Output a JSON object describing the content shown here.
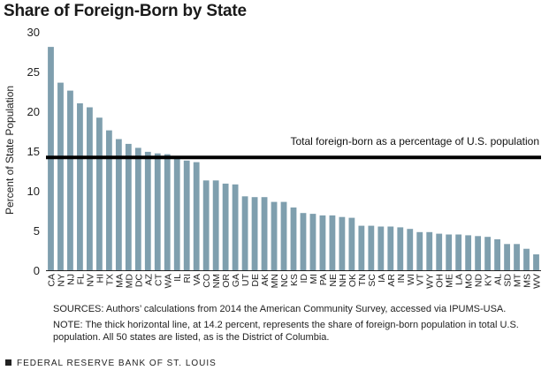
{
  "chart_data": {
    "type": "bar",
    "title": "Share of Foreign-Born by State",
    "xlabel": "",
    "ylabel": "Percent of State Population",
    "ylim": [
      0,
      30
    ],
    "yticks": [
      0,
      5,
      10,
      15,
      20,
      25,
      30
    ],
    "bar_color": "#7f9fae",
    "grid": false,
    "categories": [
      "CA",
      "NY",
      "NJ",
      "FL",
      "NV",
      "HI",
      "TX",
      "MA",
      "MD",
      "DC",
      "AZ",
      "CT",
      "WA",
      "IL",
      "RI",
      "VA",
      "CO",
      "NM",
      "OR",
      "GA",
      "UT",
      "DE",
      "AK",
      "MN",
      "NC",
      "KS",
      "ID",
      "MI",
      "PA",
      "NE",
      "NH",
      "OK",
      "TN",
      "SC",
      "IA",
      "AR",
      "IN",
      "WI",
      "VT",
      "WY",
      "OH",
      "ME",
      "LA",
      "MO",
      "ND",
      "KY",
      "AL",
      "SD",
      "MT",
      "MS",
      "WV"
    ],
    "values": [
      28.1,
      23.6,
      22.6,
      21.0,
      20.5,
      19.2,
      17.6,
      16.5,
      15.9,
      15.4,
      14.9,
      14.7,
      14.6,
      14.3,
      13.8,
      13.6,
      11.3,
      11.3,
      10.9,
      10.8,
      9.3,
      9.2,
      9.2,
      8.6,
      8.6,
      7.9,
      7.2,
      7.1,
      6.9,
      6.9,
      6.7,
      6.6,
      5.6,
      5.6,
      5.5,
      5.5,
      5.4,
      5.2,
      4.8,
      4.8,
      4.6,
      4.5,
      4.5,
      4.4,
      4.3,
      4.2,
      3.9,
      3.3,
      3.3,
      2.7,
      2.0
    ],
    "reference_line": {
      "value": 14.2,
      "label": "Total foreign-born as a percentage of U.S. population",
      "color": "#000000"
    }
  },
  "sources": "SOURCES: Authors’ calculations from 2014 the American Community Survey, accessed via IPUMS-USA.",
  "note": "NOTE: The thick horizontal line, at 14.2 percent, represents the share of foreign-born population in total U.S. population. All 50 states are listed, as is the District of Columbia.",
  "footer": "FEDERAL RESERVE BANK OF ST. LOUIS"
}
